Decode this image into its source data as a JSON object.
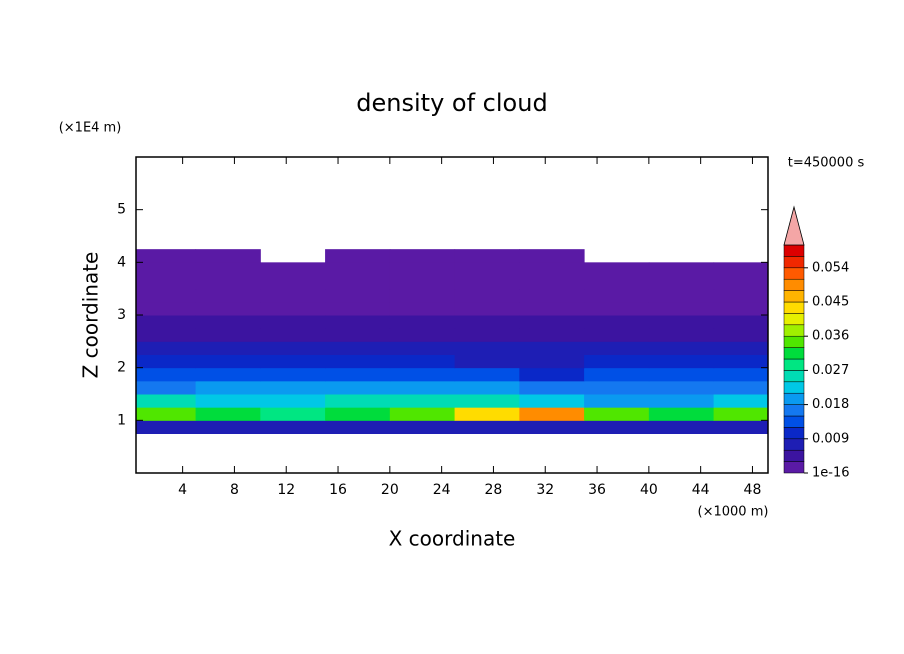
{
  "chart_data": {
    "type": "contour",
    "title": "density of cloud",
    "x_label": "X coordinate",
    "y_label": "Z coordinate",
    "x_unit": "(×1000 m)",
    "y_unit": "(×1E4 m)",
    "annotation": "t=450000 s",
    "xlim": [
      0.4,
      49.2
    ],
    "xticks": [
      4,
      8,
      12,
      16,
      20,
      24,
      28,
      32,
      36,
      40,
      44,
      48
    ],
    "ylim": [
      0,
      6
    ],
    "yticks": [
      1,
      2,
      3,
      4,
      5
    ],
    "x": [
      2.5,
      7.5,
      12.5,
      17.5,
      22.5,
      27.5,
      32.5,
      37.5,
      42.5,
      47.5
    ],
    "cell_width": 5,
    "cell_height": 0.25,
    "z": [
      0.875,
      1.125,
      1.375,
      1.625,
      1.875,
      2.125,
      2.375,
      2.625,
      2.875,
      3.125,
      3.375,
      3.625,
      3.875,
      4.125
    ],
    "values": [
      [
        0.006,
        0.006,
        0.006,
        0.006,
        0.006,
        0.006,
        0.006,
        0.006,
        0.006,
        0.006
      ],
      [
        0.033,
        0.03,
        0.028,
        0.03,
        0.035,
        0.042,
        0.05,
        0.035,
        0.03,
        0.033
      ],
      [
        0.025,
        0.022,
        0.022,
        0.024,
        0.024,
        0.025,
        0.022,
        0.02,
        0.02,
        0.022
      ],
      [
        0.016,
        0.018,
        0.02,
        0.02,
        0.018,
        0.018,
        0.016,
        0.016,
        0.017,
        0.016
      ],
      [
        0.012,
        0.013,
        0.013,
        0.012,
        0.012,
        0.012,
        0.011,
        0.012,
        0.013,
        0.012
      ],
      [
        0.009,
        0.009,
        0.01,
        0.009,
        0.009,
        0.008,
        0.008,
        0.009,
        0.01,
        0.009
      ],
      [
        0.007,
        0.007,
        0.007,
        0.006,
        0.007,
        0.006,
        0.007,
        0.007,
        0.008,
        0.007
      ],
      [
        0.004,
        0.004,
        0.005,
        0.004,
        0.004,
        0.004,
        0.004,
        0.004,
        0.005,
        0.004
      ],
      [
        0.003,
        0.003,
        0.003,
        0.003,
        0.003,
        0.003,
        0.003,
        0.003,
        0.003,
        0.003
      ],
      [
        0.002,
        0.002,
        0.002,
        0.002,
        0.002,
        0.002,
        0.002,
        0.002,
        0.002,
        0.002
      ],
      [
        0.001,
        0.001,
        0.001,
        0.001,
        0.001,
        0.001,
        0.001,
        0.001,
        0.001,
        0.001
      ],
      [
        0.001,
        0.001,
        0.001,
        0.001,
        0.001,
        0.001,
        0.001,
        0.001,
        0.001,
        0.001
      ],
      [
        0.001,
        0.001,
        0.001,
        0.001,
        0.001,
        0.001,
        0.001,
        0.001,
        0.001,
        0.001
      ],
      [
        0.0005,
        0.0005,
        null,
        0.0005,
        0.0005,
        0.0005,
        0.0005,
        null,
        null,
        null
      ]
    ],
    "levels": [
      1e-16,
      0.003,
      0.006,
      0.009,
      0.012,
      0.015,
      0.018,
      0.021,
      0.024,
      0.027,
      0.03,
      0.033,
      0.036,
      0.039,
      0.042,
      0.045,
      0.048,
      0.051,
      0.054,
      0.057
    ],
    "colors": [
      "#5a1aa5",
      "#3c14a0",
      "#1e1eb4",
      "#0a28c8",
      "#0050e6",
      "#1478f0",
      "#0a9af0",
      "#00c8e6",
      "#00dcb4",
      "#00e682",
      "#00dc3c",
      "#50e600",
      "#a0f000",
      "#e6f000",
      "#ffdc00",
      "#ffb400",
      "#ff8c00",
      "#ff5a00",
      "#f02800",
      "#dc0000"
    ],
    "extend_color": "#f4a6a6",
    "colorbar_ticks": [
      1e-16,
      0.009,
      0.018,
      0.027,
      0.036,
      0.045,
      0.054
    ]
  }
}
